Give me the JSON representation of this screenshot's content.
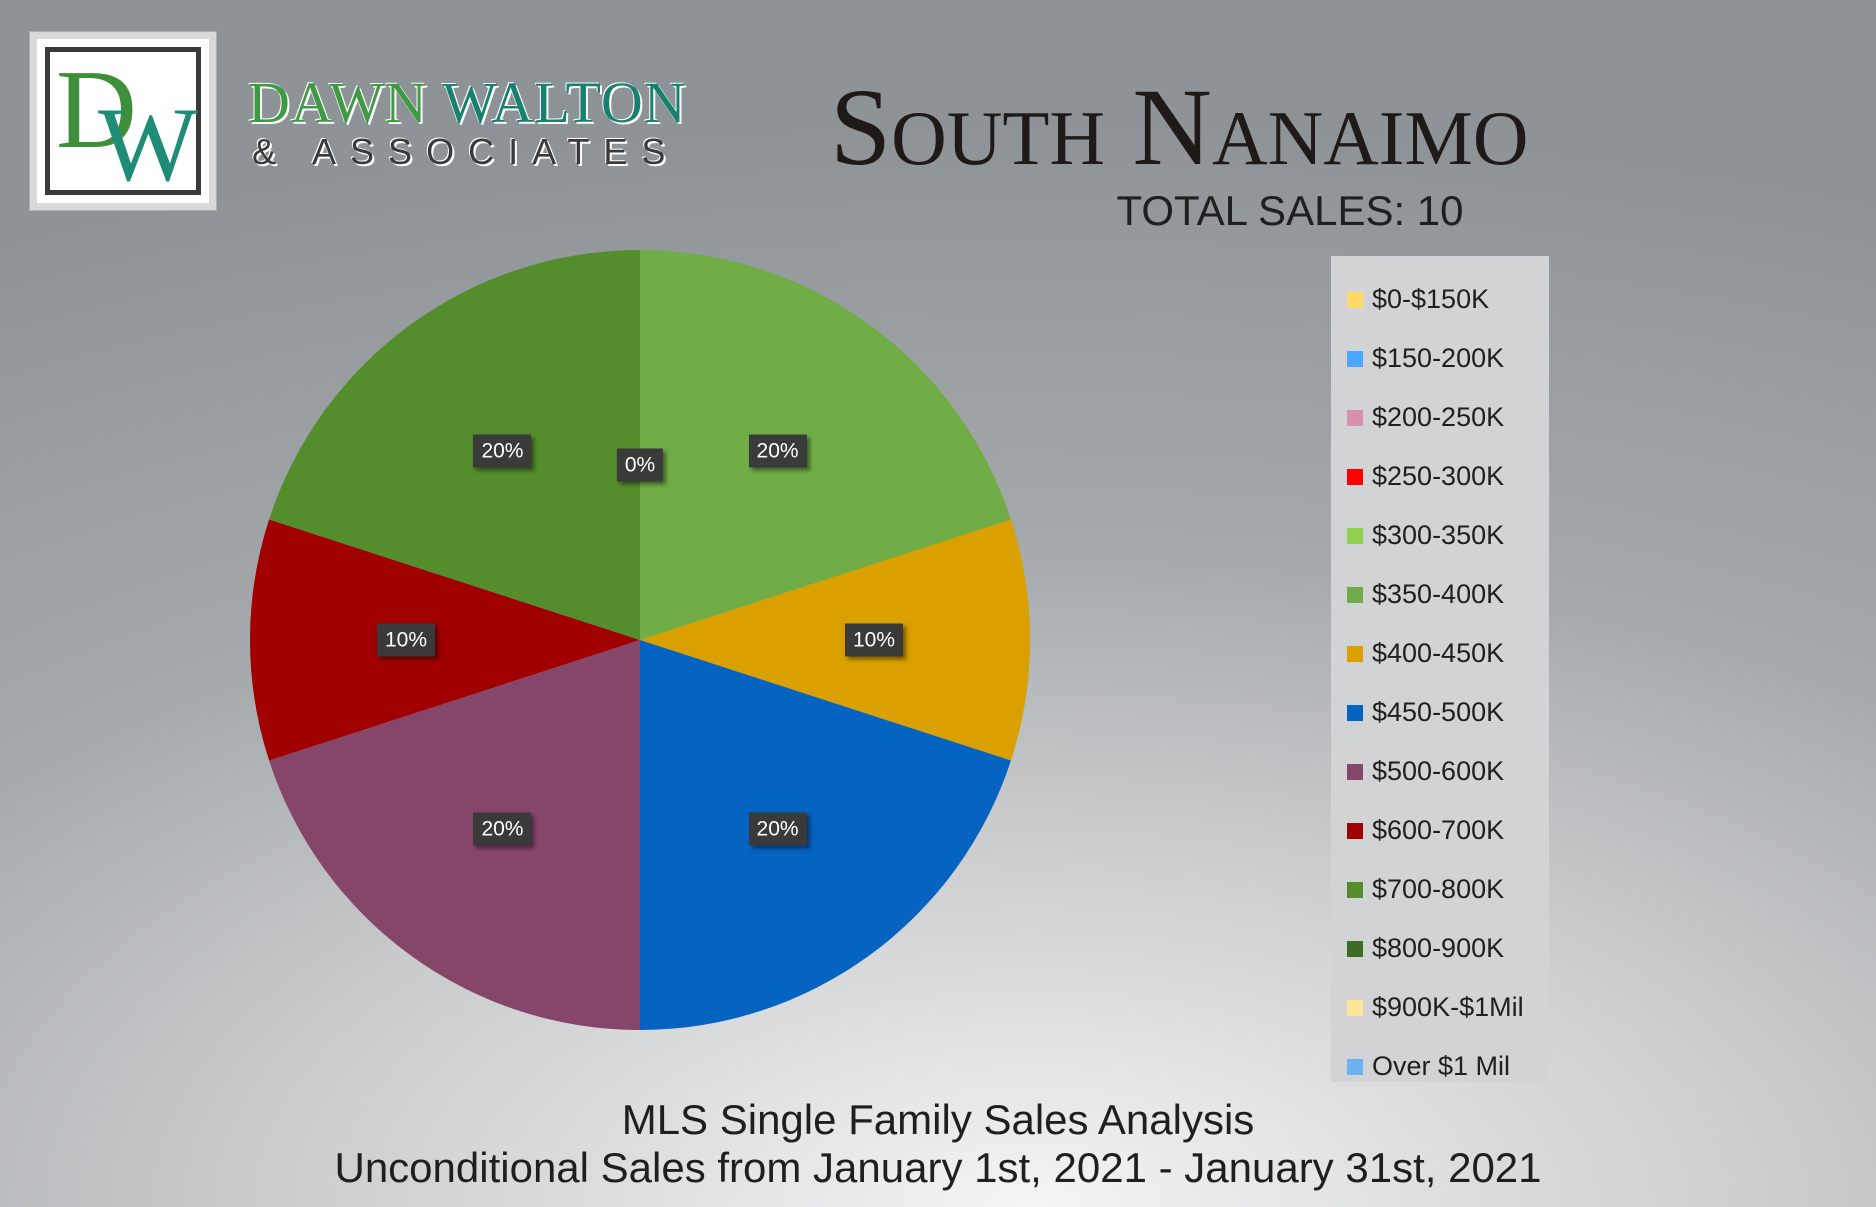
{
  "brand": {
    "logo_letters": "DW",
    "name_line1_a": "DAWN",
    "name_line1_b": "WALTON",
    "name_line2": "& ASSOCIATES"
  },
  "title": "South Nanaimo",
  "total_sales": "TOTAL SALES: 10",
  "footer": {
    "line1": "MLS Single Family Sales Analysis",
    "line2": "Unconditional Sales from January 1st, 2021 - January 31st, 2021"
  },
  "chart_data": {
    "type": "pie",
    "title": "South Nanaimo",
    "legend_position": "right",
    "categories": [
      "$0-$150K",
      "$150-200K",
      "$200-250K",
      "$250-300K",
      "$300-350K",
      "$350-400K",
      "$400-450K",
      "$450-500K",
      "$500-600K",
      "$600-700K",
      "$700-800K",
      "$800-900K",
      "$900K-$1Mil",
      "Over $1 Mil"
    ],
    "values": [
      0,
      0,
      0,
      0,
      0,
      2,
      1,
      2,
      2,
      1,
      2,
      0,
      0,
      0
    ],
    "percent_labels": [
      "0%",
      "",
      "",
      "",
      "",
      "20%",
      "10%",
      "20%",
      "20%",
      "10%",
      "20%",
      "",
      "",
      ""
    ],
    "colors": [
      "#ffd966",
      "#4da6ff",
      "#d98fb0",
      "#ff0000",
      "#8fd14f",
      "#70ad47",
      "#d9a000",
      "#0563c1",
      "#86466a",
      "#a00000",
      "#548d2c",
      "#3e6b22",
      "#ffe699",
      "#6fb1f5"
    ]
  }
}
